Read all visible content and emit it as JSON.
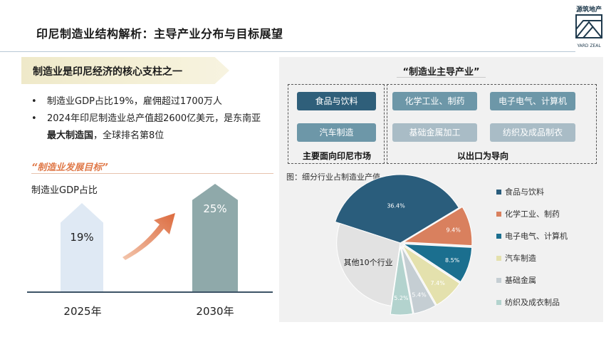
{
  "header": {
    "title": "印尼制造业结构解析：主导产业分布与目标展望",
    "logo_cn": "源筑地产",
    "logo_en": "YARD ZEAL"
  },
  "left": {
    "banner": "制造业是印尼经济的核心支柱之一",
    "bullet1": "制造业GDP占比19%，雇佣超过1700万人",
    "bullet2_pre": "2024年印尼制造业总产值超2600亿美元，是东南亚",
    "bullet2_bold": "最大制造国",
    "bullet2_post": "，全球排名第8位",
    "goal_title": "“制造业发展目标”",
    "goal_sub": "制造业GDP占比"
  },
  "colors": {
    "food": "#2a5d7c",
    "chem": "#d9805e",
    "elec": "#1b6f8f",
    "auto": "#e4e1ad",
    "metal": "#c5ced3",
    "textile": "#b3d3ce",
    "other": "#e2e2e2"
  },
  "industry": {
    "panel_title": "“制造业主导产业”",
    "domestic": [
      "食品与饮料",
      "汽车制造"
    ],
    "export": [
      "化学工业、制药",
      "电子电气、计算机",
      "基础金属加工",
      "纺织及成品制衣"
    ],
    "domestic_label": "主要面向印尼市场",
    "export_label": "以出口为导向",
    "chart_caption": "图：细分行业占制造业产值"
  },
  "chart_data": [
    {
      "type": "bar",
      "title": "制造业GDP占比",
      "categories": [
        "2025年",
        "2030年"
      ],
      "values": [
        19,
        25
      ],
      "value_labels": [
        "19%",
        "25%"
      ]
    },
    {
      "type": "pie",
      "title": "图：细分行业占制造业产值",
      "slices": [
        {
          "name": "食品与饮料",
          "value": 36.4,
          "label": "36.4%",
          "color_key": "food"
        },
        {
          "name": "化学工业、制药",
          "value": 9.4,
          "label": "9.4%",
          "color_key": "chem"
        },
        {
          "name": "电子电气、计算机",
          "value": 8.5,
          "label": "8.5%",
          "color_key": "elec"
        },
        {
          "name": "汽车制造",
          "value": 7.4,
          "label": "7.4%",
          "color_key": "auto"
        },
        {
          "name": "基础金属",
          "value": 5.4,
          "label": "5.4%",
          "color_key": "metal"
        },
        {
          "name": "纺织及成衣制品",
          "value": 5.2,
          "label": "5.2%",
          "color_key": "textile"
        },
        {
          "name": "其他10个行业",
          "value": 27.7,
          "label": "其他10个行业",
          "color_key": "other"
        }
      ],
      "legend": [
        "食品与饮料",
        "化学工业、制药",
        "电子电气、计算机",
        "汽车制造",
        "基础金属",
        "纺织及成衣制品"
      ]
    }
  ]
}
